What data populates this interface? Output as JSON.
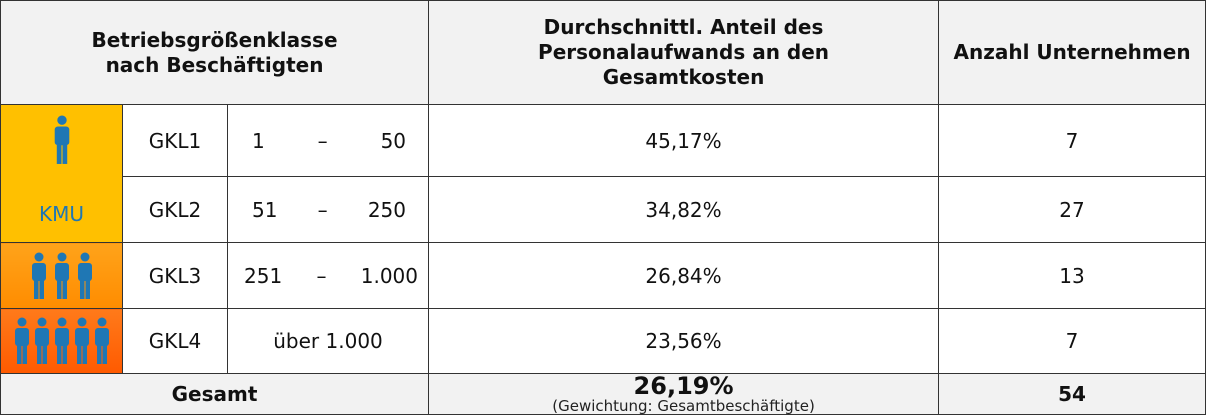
{
  "header": {
    "class_label": [
      "Betriebsgrößenklasse",
      "nach Beschäftigten"
    ],
    "share_label": [
      "Durchschnittl. Anteil des",
      "Personalaufwands an den",
      "Gesamtkosten"
    ],
    "count_label": "Anzahl Unternehmen"
  },
  "sme_label": "KMU",
  "rows": [
    {
      "class": "GKL1",
      "range": {
        "from": "1",
        "sep": "–",
        "to": "50"
      },
      "share": "45,17%",
      "count": "7"
    },
    {
      "class": "GKL2",
      "range": {
        "from": "51",
        "sep": "–",
        "to": "250"
      },
      "share": "34,82%",
      "count": "27"
    },
    {
      "class": "GKL3",
      "range": {
        "from": "251",
        "sep": "–",
        "to": "1.000"
      },
      "share": "26,84%",
      "count": "13"
    },
    {
      "class": "GKL4",
      "range": {
        "text": "über 1.000"
      },
      "share": "23,56%",
      "count": "7"
    }
  ],
  "total": {
    "label": "Gesamt",
    "share": "26,19%",
    "note": "(Gewichtung: Gesamtbeschäftigte)",
    "count": "54"
  }
}
